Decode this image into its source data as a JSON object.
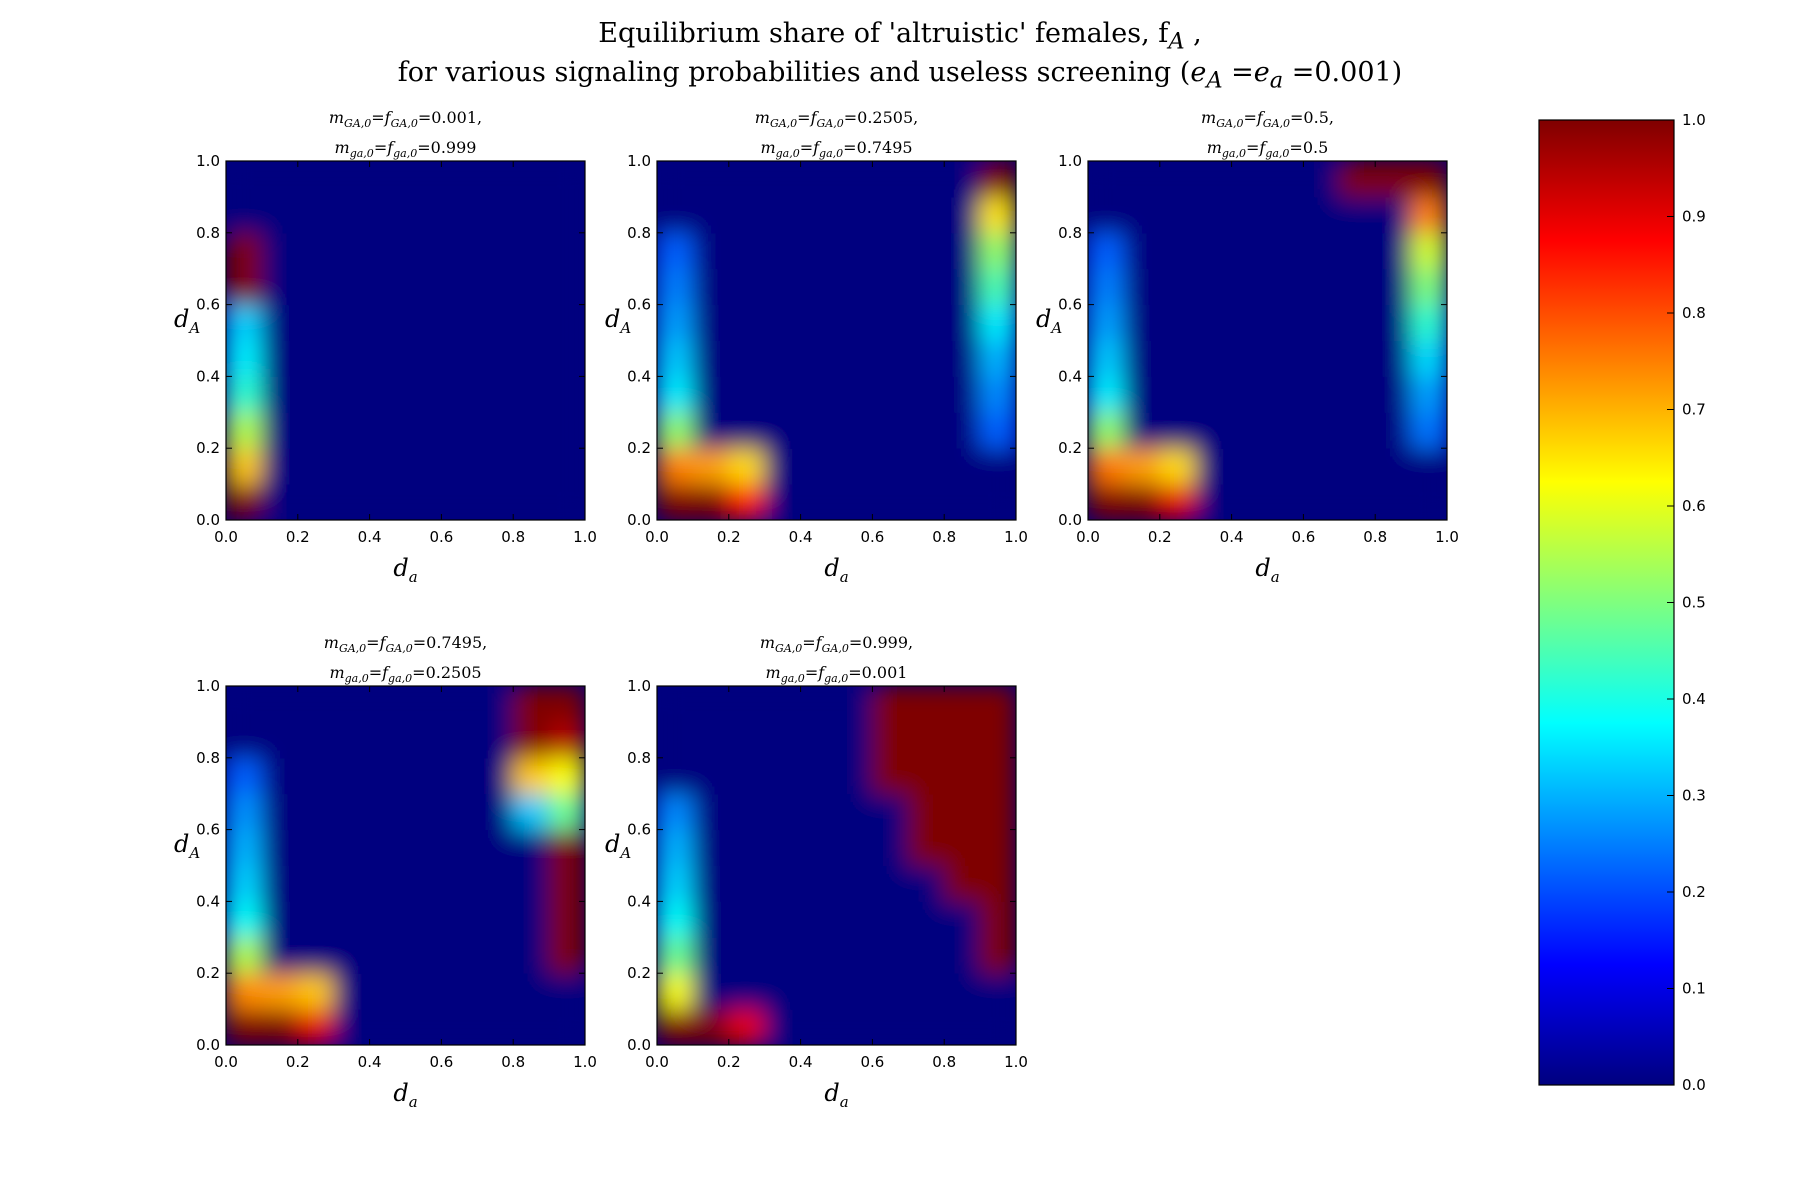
{
  "title": {
    "line1": "Equilibrium share of 'altruistic' females, f",
    "line1_sub": "A",
    "line1_end": " ,",
    "line2_start": "for various signaling probabilities and useless screening (",
    "line2_math": "e",
    "line2_sub1": "A",
    "line2_eq": " =e",
    "line2_sub2": "a",
    "line2_val": " =0.001)"
  },
  "colors": {
    "jet_stops": [
      "#00007f",
      "#0000ff",
      "#007fff",
      "#00ffff",
      "#7fff7f",
      "#ffff00",
      "#ff7f00",
      "#ff0000",
      "#7f0000"
    ]
  },
  "chart_data": {
    "type": "heatmap",
    "colormap": "jet",
    "vmin": 0.0,
    "vmax": 1.0,
    "colorbar_ticks": [
      "0.0",
      "0.1",
      "0.2",
      "0.3",
      "0.4",
      "0.5",
      "0.6",
      "0.7",
      "0.8",
      "0.9",
      "1.0"
    ],
    "xlabel": "d",
    "xlabel_sub": "a",
    "ylabel": "d",
    "ylabel_sub": "A",
    "xlim": [
      0,
      1
    ],
    "ylim": [
      0,
      1
    ],
    "xticks": [
      "0.0",
      "0.2",
      "0.4",
      "0.6",
      "0.8",
      "1.0"
    ],
    "yticks": [
      "0.0",
      "0.2",
      "0.4",
      "0.6",
      "0.8",
      "1.0"
    ],
    "panels": [
      {
        "title_line1": "m_GA,0 = f_GA,0 = 0.001,",
        "title_line2": "m_ga,0 = f_ga,0 = 0.999",
        "rows_bottom_to_top": [
          [
            1.0,
            0.0,
            0.0,
            0.0,
            0.0,
            0.0,
            0.0,
            0.0,
            0.0,
            0.0
          ],
          [
            0.68,
            0.0,
            0.0,
            0.0,
            0.0,
            0.0,
            0.0,
            0.0,
            0.0,
            0.0
          ],
          [
            0.55,
            0.0,
            0.0,
            0.0,
            0.0,
            0.0,
            0.0,
            0.0,
            0.0,
            0.0
          ],
          [
            0.42,
            0.0,
            0.0,
            0.0,
            0.0,
            0.0,
            0.0,
            0.0,
            0.0,
            0.0
          ],
          [
            0.36,
            0.0,
            0.0,
            0.0,
            0.0,
            0.0,
            0.0,
            0.0,
            0.0,
            0.0
          ],
          [
            0.33,
            0.0,
            0.0,
            0.0,
            0.0,
            0.0,
            0.0,
            0.0,
            0.0,
            0.0
          ],
          [
            1.0,
            0.0,
            0.0,
            0.0,
            0.0,
            0.0,
            0.0,
            0.0,
            0.0,
            0.0
          ],
          [
            1.0,
            0.0,
            0.0,
            0.0,
            0.0,
            0.0,
            0.0,
            0.0,
            0.0,
            0.0
          ],
          [
            0.0,
            0.0,
            0.0,
            0.0,
            0.0,
            0.0,
            0.0,
            0.0,
            0.0,
            0.0
          ],
          [
            0.0,
            0.0,
            0.0,
            0.0,
            0.0,
            0.0,
            0.0,
            0.0,
            0.0,
            0.0
          ]
        ]
      },
      {
        "title_line1": "m_GA,0 = f_GA,0 = 0.2505,",
        "title_line2": "m_ga,0 = f_ga,0 = 0.7495",
        "rows_bottom_to_top": [
          [
            1.0,
            1.0,
            0.85,
            0.0,
            0.0,
            0.0,
            0.0,
            0.0,
            0.0,
            0.0
          ],
          [
            0.75,
            0.72,
            0.66,
            0.0,
            0.0,
            0.0,
            0.0,
            0.0,
            0.0,
            0.0
          ],
          [
            0.52,
            0.0,
            0.0,
            0.0,
            0.0,
            0.0,
            0.0,
            0.0,
            0.0,
            0.22
          ],
          [
            0.36,
            0.0,
            0.0,
            0.0,
            0.0,
            0.0,
            0.0,
            0.0,
            0.0,
            0.26
          ],
          [
            0.32,
            0.0,
            0.0,
            0.0,
            0.0,
            0.0,
            0.0,
            0.0,
            0.0,
            0.3
          ],
          [
            0.28,
            0.0,
            0.0,
            0.0,
            0.0,
            0.0,
            0.0,
            0.0,
            0.0,
            0.36
          ],
          [
            0.25,
            0.0,
            0.0,
            0.0,
            0.0,
            0.0,
            0.0,
            0.0,
            0.0,
            0.45
          ],
          [
            0.22,
            0.0,
            0.0,
            0.0,
            0.0,
            0.0,
            0.0,
            0.0,
            0.0,
            0.52
          ],
          [
            0.0,
            0.0,
            0.0,
            0.0,
            0.0,
            0.0,
            0.0,
            0.0,
            0.0,
            0.65
          ],
          [
            0.0,
            0.0,
            0.0,
            0.0,
            0.0,
            0.0,
            0.0,
            0.0,
            0.0,
            1.0
          ]
        ]
      },
      {
        "title_line1": "m_GA,0 = f_GA,0 = 0.5,",
        "title_line2": "m_ga,0 = f_ga,0 = 0.5",
        "rows_bottom_to_top": [
          [
            1.0,
            1.0,
            0.9,
            0.0,
            0.0,
            0.0,
            0.0,
            0.0,
            0.0,
            0.0
          ],
          [
            0.76,
            0.72,
            0.66,
            0.0,
            0.0,
            0.0,
            0.0,
            0.0,
            0.0,
            0.0
          ],
          [
            0.52,
            0.0,
            0.0,
            0.0,
            0.0,
            0.0,
            0.0,
            0.0,
            0.0,
            0.24
          ],
          [
            0.36,
            0.0,
            0.0,
            0.0,
            0.0,
            0.0,
            0.0,
            0.0,
            0.0,
            0.28
          ],
          [
            0.32,
            0.0,
            0.0,
            0.0,
            0.0,
            0.0,
            0.0,
            0.0,
            0.0,
            0.34
          ],
          [
            0.28,
            0.0,
            0.0,
            0.0,
            0.0,
            0.0,
            0.0,
            0.0,
            0.0,
            0.42
          ],
          [
            0.25,
            0.0,
            0.0,
            0.0,
            0.0,
            0.0,
            0.0,
            0.0,
            0.0,
            0.5
          ],
          [
            0.22,
            0.0,
            0.0,
            0.0,
            0.0,
            0.0,
            0.0,
            0.0,
            0.0,
            0.58
          ],
          [
            0.0,
            0.0,
            0.0,
            0.0,
            0.0,
            0.0,
            0.0,
            0.0,
            0.0,
            0.75
          ],
          [
            0.0,
            0.0,
            0.0,
            0.0,
            0.0,
            0.0,
            0.0,
            1.0,
            1.0,
            1.0
          ]
        ]
      },
      {
        "title_line1": "m_GA,0 = f_GA,0 = 0.7495,",
        "title_line2": "m_ga,0 = f_ga,0 = 0.2505",
        "rows_bottom_to_top": [
          [
            1.0,
            1.0,
            0.9,
            0.0,
            0.0,
            0.0,
            0.0,
            0.0,
            0.0,
            0.0
          ],
          [
            0.74,
            0.72,
            0.68,
            0.0,
            0.0,
            0.0,
            0.0,
            0.0,
            0.0,
            0.0
          ],
          [
            0.55,
            0.0,
            0.0,
            0.0,
            0.0,
            0.0,
            0.0,
            0.0,
            0.0,
            1.0
          ],
          [
            0.38,
            0.0,
            0.0,
            0.0,
            0.0,
            0.0,
            0.0,
            0.0,
            0.0,
            1.0
          ],
          [
            0.33,
            0.0,
            0.0,
            0.0,
            0.0,
            0.0,
            0.0,
            0.0,
            0.0,
            1.0
          ],
          [
            0.3,
            0.0,
            0.0,
            0.0,
            0.0,
            0.0,
            0.0,
            0.0,
            0.0,
            1.0
          ],
          [
            0.27,
            0.0,
            0.0,
            0.0,
            0.0,
            0.0,
            0.0,
            0.0,
            0.32,
            0.48
          ],
          [
            0.22,
            0.0,
            0.0,
            0.0,
            0.0,
            0.0,
            0.0,
            0.0,
            0.68,
            0.62
          ],
          [
            0.0,
            0.0,
            0.0,
            0.0,
            0.0,
            0.0,
            0.0,
            0.0,
            1.0,
            0.95
          ],
          [
            0.0,
            0.0,
            0.0,
            0.0,
            0.0,
            0.0,
            0.0,
            0.0,
            1.0,
            1.0
          ]
        ]
      },
      {
        "title_line1": "m_GA,0 = f_GA,0 = 0.999,",
        "title_line2": "m_ga,0 = f_ga,0 = 0.001",
        "rows_bottom_to_top": [
          [
            1.0,
            1.0,
            0.9,
            0.0,
            0.0,
            0.0,
            0.0,
            0.0,
            0.0,
            0.0
          ],
          [
            0.62,
            0.0,
            0.0,
            0.0,
            0.0,
            0.0,
            0.0,
            0.0,
            0.0,
            0.0
          ],
          [
            0.48,
            0.0,
            0.0,
            0.0,
            0.0,
            0.0,
            0.0,
            0.0,
            0.0,
            1.0
          ],
          [
            0.38,
            0.0,
            0.0,
            0.0,
            0.0,
            0.0,
            0.0,
            0.0,
            0.0,
            1.0
          ],
          [
            0.33,
            0.0,
            0.0,
            0.0,
            0.0,
            0.0,
            0.0,
            0.0,
            1.0,
            1.0
          ],
          [
            0.3,
            0.0,
            0.0,
            0.0,
            0.0,
            0.0,
            0.0,
            1.0,
            1.0,
            1.0
          ],
          [
            0.26,
            0.0,
            0.0,
            0.0,
            0.0,
            0.0,
            0.0,
            1.0,
            1.0,
            1.0
          ],
          [
            0.0,
            0.0,
            0.0,
            0.0,
            0.0,
            0.0,
            1.0,
            1.0,
            1.0,
            1.0
          ],
          [
            0.0,
            0.0,
            0.0,
            0.0,
            0.0,
            0.0,
            1.0,
            1.0,
            1.0,
            1.0
          ],
          [
            0.0,
            0.0,
            0.0,
            0.0,
            0.0,
            0.0,
            1.0,
            1.0,
            1.0,
            1.0
          ]
        ]
      }
    ]
  }
}
